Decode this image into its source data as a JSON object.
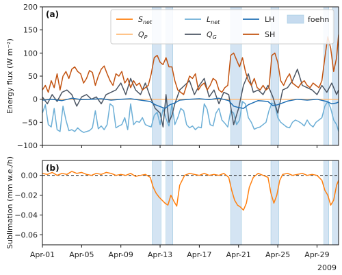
{
  "chart_data": [
    {
      "panel": "(a)",
      "type": "line",
      "ylabel": "Energy flux (W m⁻²)",
      "ylim": [
        -100,
        200
      ],
      "yticks": [
        -100,
        -50,
        0,
        50,
        100,
        150,
        200
      ],
      "xlim": [
        0,
        30.2
      ],
      "grid": false,
      "legend_position": "top-right",
      "shaded_spans_name": "foehn",
      "foehn_periods": [
        [
          11.2,
          12.1
        ],
        [
          12.6,
          13.3
        ],
        [
          19.2,
          20.3
        ],
        [
          23.3,
          24.1
        ],
        [
          28.7,
          29.2
        ],
        [
          29.6,
          30.2
        ]
      ],
      "series": [
        {
          "name": "S_net",
          "label_main": "S",
          "label_sub": "net",
          "color": "#ff7f0e",
          "x": [
            0,
            30.2
          ],
          "y": [
            0,
            0
          ]
        },
        {
          "name": "Q_P",
          "label_main": "Q",
          "label_sub": "P",
          "color": "#ffbb78",
          "x": [
            0,
            30.2
          ],
          "y": [
            0,
            0
          ]
        },
        {
          "name": "L_net",
          "label_main": "L",
          "label_sub": "net",
          "color": "#6baed6",
          "x": [
            0,
            0.3,
            0.6,
            0.9,
            1.2,
            1.5,
            1.8,
            2.1,
            2.4,
            2.7,
            3.0,
            3.3,
            3.6,
            3.9,
            4.2,
            4.5,
            4.8,
            5.1,
            5.4,
            5.7,
            6.0,
            6.3,
            6.6,
            6.9,
            7.2,
            7.5,
            7.8,
            8.1,
            8.4,
            8.7,
            9.0,
            9.3,
            9.6,
            9.9,
            10.2,
            10.5,
            10.8,
            11.1,
            11.4,
            11.7,
            12.0,
            12.3,
            12.6,
            12.9,
            13.2,
            13.5,
            13.8,
            14.1,
            14.4,
            14.7,
            15.0,
            15.3,
            15.6,
            15.9,
            16.2,
            16.5,
            16.8,
            17.1,
            17.4,
            17.7,
            18.0,
            18.3,
            18.6,
            18.9,
            19.2,
            19.5,
            19.8,
            20.1,
            20.4,
            20.7,
            21.0,
            21.3,
            21.6,
            21.9,
            22.2,
            22.5,
            22.8,
            23.1,
            23.4,
            23.7,
            24.0,
            24.3,
            24.6,
            24.9,
            25.2,
            25.5,
            25.8,
            26.1,
            26.4,
            26.7,
            27.0,
            27.3,
            27.6,
            27.9,
            28.2,
            28.5,
            28.8,
            29.1,
            29.4,
            29.7,
            30.0,
            30.2
          ],
          "y": [
            -30,
            -12,
            -55,
            -60,
            -20,
            -66,
            -70,
            -15,
            -45,
            -68,
            -66,
            -70,
            -62,
            -68,
            -72,
            -70,
            -68,
            -62,
            -25,
            -64,
            -58,
            -66,
            -55,
            -10,
            -15,
            -62,
            -58,
            -55,
            -40,
            -66,
            -10,
            -55,
            -48,
            -50,
            -40,
            -55,
            -58,
            -60,
            -35,
            -28,
            -55,
            -20,
            -42,
            -58,
            -10,
            -55,
            -40,
            -20,
            -25,
            -55,
            -62,
            -58,
            -66,
            -60,
            -62,
            -10,
            -22,
            -55,
            -58,
            -30,
            -20,
            -45,
            -52,
            -60,
            -25,
            -30,
            -55,
            -45,
            -5,
            -10,
            -40,
            -50,
            -65,
            -62,
            -60,
            -55,
            -50,
            -25,
            -8,
            -12,
            -40,
            -50,
            -55,
            -60,
            -62,
            -50,
            -45,
            -48,
            -52,
            -58,
            -45,
            -55,
            -60,
            -50,
            -45,
            -40,
            -15,
            -5,
            -20,
            -45,
            -55,
            -70
          ]
        },
        {
          "name": "Q_G",
          "label_main": "Q",
          "label_sub": "G",
          "color": "#4b5563",
          "x": [
            0,
            0.5,
            1.0,
            1.5,
            2.0,
            2.5,
            3.0,
            3.5,
            4.0,
            4.5,
            5.0,
            5.5,
            6.0,
            6.5,
            7.0,
            7.5,
            8.0,
            8.5,
            9.0,
            9.5,
            10.0,
            10.5,
            11.0,
            11.5,
            12.0,
            12.3,
            12.6,
            12.9,
            13.2,
            13.5,
            14.0,
            14.5,
            15.0,
            15.5,
            16.0,
            16.5,
            17.0,
            17.5,
            18.0,
            18.5,
            19.0,
            19.5,
            20.0,
            20.5,
            21.0,
            21.5,
            22.0,
            22.5,
            23.0,
            23.5,
            24.0,
            24.5,
            25.0,
            25.5,
            26.0,
            26.5,
            27.0,
            27.5,
            28.0,
            28.5,
            29.0,
            29.5,
            30.0,
            30.2
          ],
          "y": [
            5,
            -10,
            10,
            -5,
            15,
            20,
            10,
            -15,
            5,
            10,
            0,
            5,
            -10,
            10,
            15,
            20,
            35,
            10,
            45,
            20,
            10,
            35,
            5,
            -20,
            -30,
            -60,
            10,
            -50,
            -35,
            -10,
            20,
            30,
            40,
            10,
            30,
            45,
            5,
            20,
            -10,
            15,
            10,
            -55,
            -20,
            30,
            55,
            15,
            20,
            10,
            30,
            5,
            -30,
            20,
            25,
            40,
            65,
            30,
            25,
            20,
            10,
            30,
            15,
            35,
            10,
            20
          ]
        },
        {
          "name": "LH",
          "label_main": "LH",
          "label_sub": "",
          "color": "#1f6fb4",
          "x": [
            0,
            1,
            2,
            3,
            4,
            5,
            6,
            7,
            8,
            9,
            10,
            11,
            11.5,
            12,
            12.5,
            13,
            13.5,
            14,
            15,
            16,
            17,
            18,
            19,
            19.5,
            20,
            20.5,
            21,
            22,
            23,
            23.5,
            24,
            25,
            26,
            27,
            28,
            29,
            29.5,
            30,
            30.2
          ],
          "y": [
            -2,
            0,
            -3,
            2,
            -1,
            0,
            1,
            -2,
            0,
            1,
            -2,
            -5,
            -12,
            -16,
            -20,
            -12,
            -8,
            -2,
            0,
            1,
            -1,
            2,
            -3,
            -15,
            -18,
            -20,
            -12,
            -3,
            -5,
            -14,
            -12,
            -4,
            0,
            -2,
            0,
            -5,
            -10,
            -8,
            -6
          ]
        },
        {
          "name": "SH",
          "label_main": "SH",
          "label_sub": "",
          "color": "#c2520f",
          "x": [
            0,
            0.3,
            0.6,
            0.9,
            1.2,
            1.5,
            1.8,
            2.1,
            2.4,
            2.7,
            3.0,
            3.3,
            3.6,
            3.9,
            4.2,
            4.5,
            4.8,
            5.1,
            5.4,
            5.7,
            6.0,
            6.3,
            6.6,
            6.9,
            7.2,
            7.5,
            7.8,
            8.1,
            8.4,
            8.7,
            9.0,
            9.3,
            9.6,
            9.9,
            10.2,
            10.5,
            10.8,
            11.1,
            11.4,
            11.7,
            12.0,
            12.3,
            12.6,
            12.9,
            13.2,
            13.5,
            13.8,
            14.1,
            14.4,
            14.7,
            15.0,
            15.3,
            15.6,
            15.9,
            16.2,
            16.5,
            16.8,
            17.1,
            17.4,
            17.7,
            18.0,
            18.3,
            18.6,
            18.9,
            19.2,
            19.5,
            19.8,
            20.1,
            20.4,
            20.7,
            21.0,
            21.3,
            21.6,
            21.9,
            22.2,
            22.5,
            22.8,
            23.1,
            23.4,
            23.7,
            24.0,
            24.3,
            24.6,
            24.9,
            25.2,
            25.5,
            25.8,
            26.1,
            26.4,
            26.7,
            27.0,
            27.3,
            27.6,
            27.9,
            28.2,
            28.5,
            28.8,
            29.1,
            29.4,
            29.7,
            30.0,
            30.2
          ],
          "y": [
            20,
            30,
            15,
            40,
            25,
            55,
            20,
            50,
            60,
            45,
            65,
            70,
            60,
            55,
            35,
            45,
            62,
            58,
            30,
            50,
            65,
            72,
            55,
            40,
            30,
            55,
            50,
            60,
            35,
            45,
            25,
            40,
            30,
            35,
            20,
            25,
            30,
            55,
            90,
            95,
            80,
            75,
            90,
            70,
            70,
            40,
            20,
            15,
            10,
            30,
            50,
            45,
            55,
            20,
            30,
            35,
            20,
            30,
            45,
            40,
            20,
            15,
            25,
            30,
            95,
            100,
            85,
            70,
            90,
            60,
            40,
            30,
            45,
            25,
            20,
            30,
            20,
            25,
            95,
            100,
            80,
            40,
            30,
            45,
            55,
            35,
            30,
            25,
            35,
            40,
            30,
            25,
            35,
            30,
            25,
            40,
            90,
            135,
            110,
            60,
            90,
            140
          ]
        }
      ]
    },
    {
      "panel": "(b)",
      "type": "line",
      "ylabel": "Sublimation (mm w.e./h)",
      "ylim": [
        -0.07,
        0.015
      ],
      "yticks": [
        0.0,
        -0.02,
        -0.04,
        -0.06
      ],
      "ytick_labels": [
        "0.00",
        "−0.02",
        "−0.04",
        "−0.06"
      ],
      "xlim": [
        0,
        30.2
      ],
      "xticks": [
        0,
        4,
        8,
        12,
        16,
        20,
        24,
        28
      ],
      "xtick_labels": [
        "Apr-01",
        "Apr-05",
        "Apr-09",
        "Apr-13",
        "Apr-17",
        "Apr-21",
        "Apr-25",
        "Apr-29"
      ],
      "year_label": "2009",
      "reference_line": 0,
      "series": [
        {
          "name": "Sublimation",
          "color": "#ff7f0e",
          "x": [
            0,
            0.5,
            1,
            1.5,
            2,
            2.5,
            3,
            3.5,
            4,
            4.5,
            5,
            5.5,
            6,
            6.5,
            7,
            7.5,
            8,
            8.5,
            9,
            9.5,
            10,
            10.5,
            11,
            11.3,
            11.6,
            11.9,
            12.2,
            12.5,
            12.8,
            13.1,
            13.4,
            13.7,
            14,
            14.5,
            15,
            15.5,
            16,
            16.5,
            17,
            17.5,
            18,
            18.5,
            19,
            19.3,
            19.6,
            19.9,
            20.2,
            20.5,
            20.8,
            21.1,
            21.5,
            22,
            22.5,
            23,
            23.3,
            23.6,
            23.9,
            24.2,
            24.5,
            25,
            25.5,
            26,
            26.5,
            27,
            27.5,
            28,
            28.5,
            28.8,
            29.1,
            29.4,
            29.7,
            30,
            30.2
          ],
          "y": [
            0.002,
            0.001,
            0.003,
            0.0,
            0.002,
            0.001,
            0.004,
            0.002,
            0.003,
            0.001,
            0.0,
            0.002,
            0.001,
            0.003,
            0.002,
            0.0,
            0.001,
            0.0,
            0.002,
            -0.001,
            0.0,
            0.001,
            -0.002,
            -0.012,
            -0.018,
            -0.022,
            -0.025,
            -0.028,
            -0.03,
            -0.02,
            -0.026,
            -0.031,
            -0.01,
            0.0,
            0.002,
            0.001,
            0.0,
            0.002,
            0.0,
            0.001,
            0.0,
            0.002,
            -0.002,
            -0.015,
            -0.025,
            -0.03,
            -0.032,
            -0.035,
            -0.028,
            -0.012,
            -0.002,
            0.002,
            0.0,
            -0.002,
            -0.018,
            -0.028,
            -0.02,
            -0.005,
            0.001,
            0.002,
            0.0,
            0.001,
            0.002,
            0.0,
            0.001,
            0.0,
            -0.005,
            -0.015,
            -0.02,
            -0.03,
            -0.025,
            -0.01,
            -0.005
          ]
        }
      ]
    }
  ]
}
